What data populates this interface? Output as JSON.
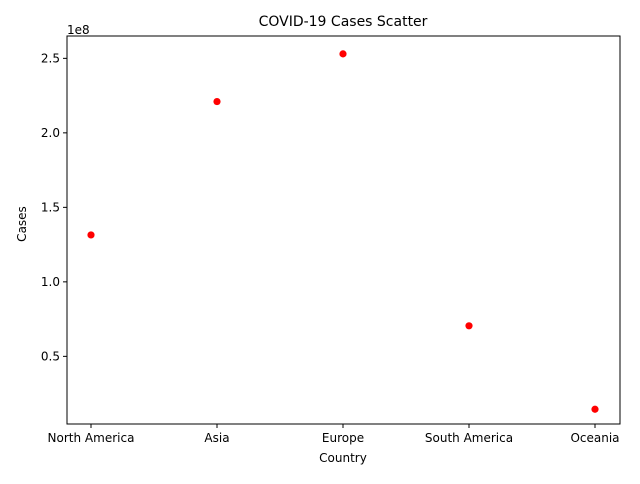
{
  "chart_data": {
    "type": "scatter",
    "title": "COVID-19 Cases Scatter",
    "xlabel": "Country",
    "ylabel": "Cases",
    "y_offset_label": "1e8",
    "y_scale_factor": 100000000,
    "categories": [
      "North America",
      "Asia",
      "Europe",
      "South America",
      "Oceania"
    ],
    "values": [
      131500000,
      221000000,
      253000000,
      70500000,
      14500000
    ],
    "yticks": [
      0.5,
      1.0,
      1.5,
      2.0,
      2.5
    ],
    "ytick_labels": [
      "0.5",
      "1.0",
      "1.5",
      "2.0",
      "2.5"
    ],
    "ylim": [
      4600000,
      265000000
    ],
    "marker_color": "#ff0000",
    "grid": false,
    "legend": "none"
  }
}
